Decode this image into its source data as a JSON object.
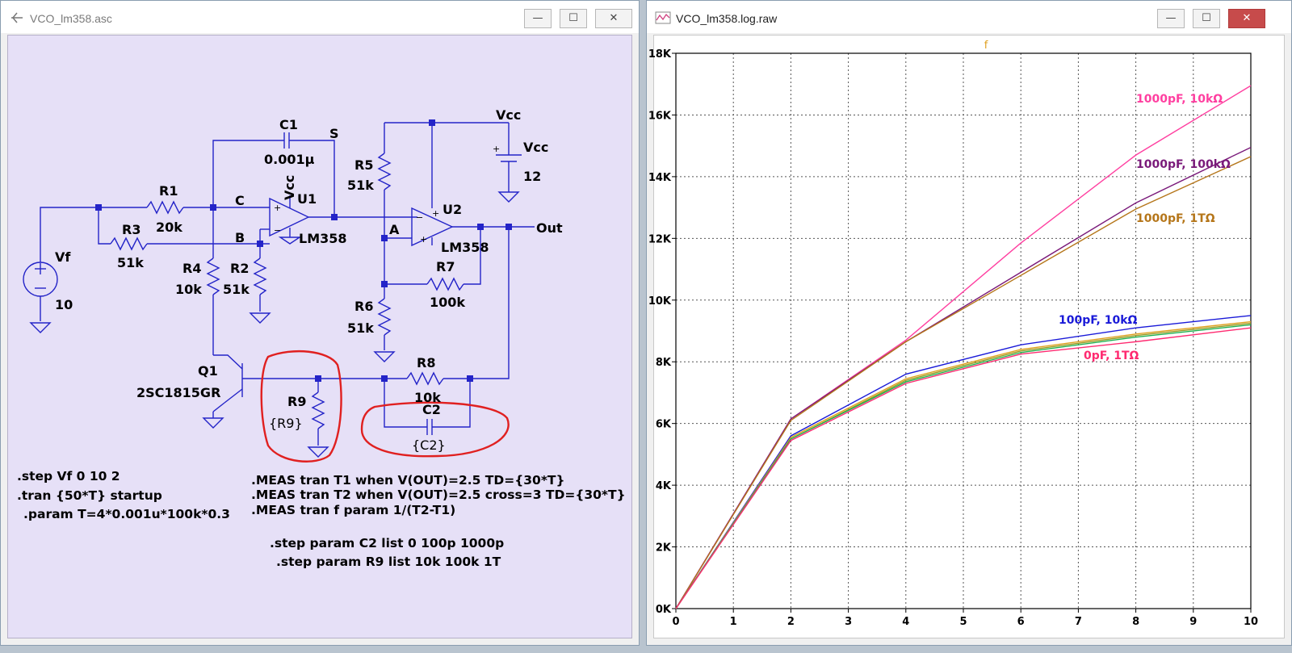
{
  "left_window": {
    "title": "VCO_lm358.asc",
    "buttons": {
      "minimize": "—",
      "maximize": "☐",
      "close": "✕"
    },
    "labels": {
      "c1": "C1",
      "c1_value": "0.001µ",
      "s_node": "S",
      "vcc_top": "Vcc",
      "vcc_supply": "Vcc",
      "vcc_value": "12",
      "vcc_u1": "Vcc",
      "u1": "U1",
      "u2": "U2",
      "r1": "R1",
      "r1_value": "20k",
      "c_node": "C",
      "r3": "R3",
      "r3_value": "51k",
      "b_node": "B",
      "lm358_u1": "LM358",
      "lm358_u2": "LM358",
      "r5": "R5",
      "r5_value": "51k",
      "a_node": "A",
      "out": "Out",
      "vf": "Vf",
      "vf_value": "10",
      "r4": "R4",
      "r4_value": "10k",
      "r2": "R2",
      "r2_value": "51k",
      "r7": "R7",
      "r7_value": "100k",
      "r6": "R6",
      "r6_value": "51k",
      "q1": "Q1",
      "q1_part": "2SC1815GR",
      "r9": "R9",
      "r9_value": "{R9}",
      "r8": "R8",
      "r8_value": "10k",
      "c2": "C2",
      "c2_value": "{C2}"
    },
    "directives": {
      "step_vf": ".step Vf 0 10 2",
      "tran": ".tran {50*T} startup",
      "param_t": ".param T=4*0.001u*100k*0.3",
      "meas_t1": ".MEAS tran T1 when V(OUT)=2.5 TD={30*T}",
      "meas_t2": ".MEAS tran T2 when V(OUT)=2.5 cross=3 TD={30*T}",
      "meas_f": ".MEAS tran f  param 1/(T2-T1)",
      "step_c2": ".step param C2 list 0 100p 1000p",
      "step_r9": ".step param R9 list 10k 100k 1T"
    },
    "highlight_color": "#e02020",
    "wire_color": "#2424c8"
  },
  "right_window": {
    "title": "VCO_lm358.log.raw",
    "buttons": {
      "minimize": "—",
      "maximize": "☐",
      "close": "✕"
    }
  },
  "chart_data": {
    "type": "line",
    "title": "f",
    "xlabel": "",
    "ylabel": "",
    "xlim": [
      0,
      10
    ],
    "ylim": [
      0,
      18000
    ],
    "grid": true,
    "x_ticks": [
      "0",
      "1",
      "2",
      "3",
      "4",
      "5",
      "6",
      "7",
      "8",
      "9",
      "10"
    ],
    "y_ticks": [
      "0K",
      "2K",
      "4K",
      "6K",
      "8K",
      "10K",
      "12K",
      "14K",
      "16K",
      "18K"
    ],
    "x": [
      0,
      2,
      4,
      6,
      8,
      10
    ],
    "series": [
      {
        "name": "1000pF, 10kΩ",
        "color": "#ff3fa0",
        "values": [
          0,
          6150,
          8700,
          11850,
          14700,
          16950
        ]
      },
      {
        "name": "1000pF, 100kΩ",
        "color": "#7a1a7a",
        "values": [
          0,
          6150,
          8650,
          10900,
          13150,
          14950
        ]
      },
      {
        "name": "1000pF, 1TΩ",
        "color": "#b5761a",
        "values": [
          0,
          6100,
          8650,
          10800,
          12950,
          14650
        ]
      },
      {
        "name": "100pF, 10kΩ",
        "color": "#1a1ad8",
        "values": [
          0,
          5600,
          7600,
          8550,
          9100,
          9500
        ]
      },
      {
        "color": "#e0a020",
        "values": [
          0,
          5550,
          7450,
          8400,
          8900,
          9300
        ]
      },
      {
        "color": "#9a9a20",
        "values": [
          0,
          5500,
          7400,
          8350,
          8850,
          9250
        ]
      },
      {
        "color": "#20b050",
        "values": [
          0,
          5500,
          7350,
          8300,
          8800,
          9200
        ]
      },
      {
        "name": "0pF, 1TΩ",
        "color": "#ff2a70",
        "values": [
          0,
          5450,
          7300,
          8250,
          8650,
          9100
        ]
      }
    ]
  }
}
